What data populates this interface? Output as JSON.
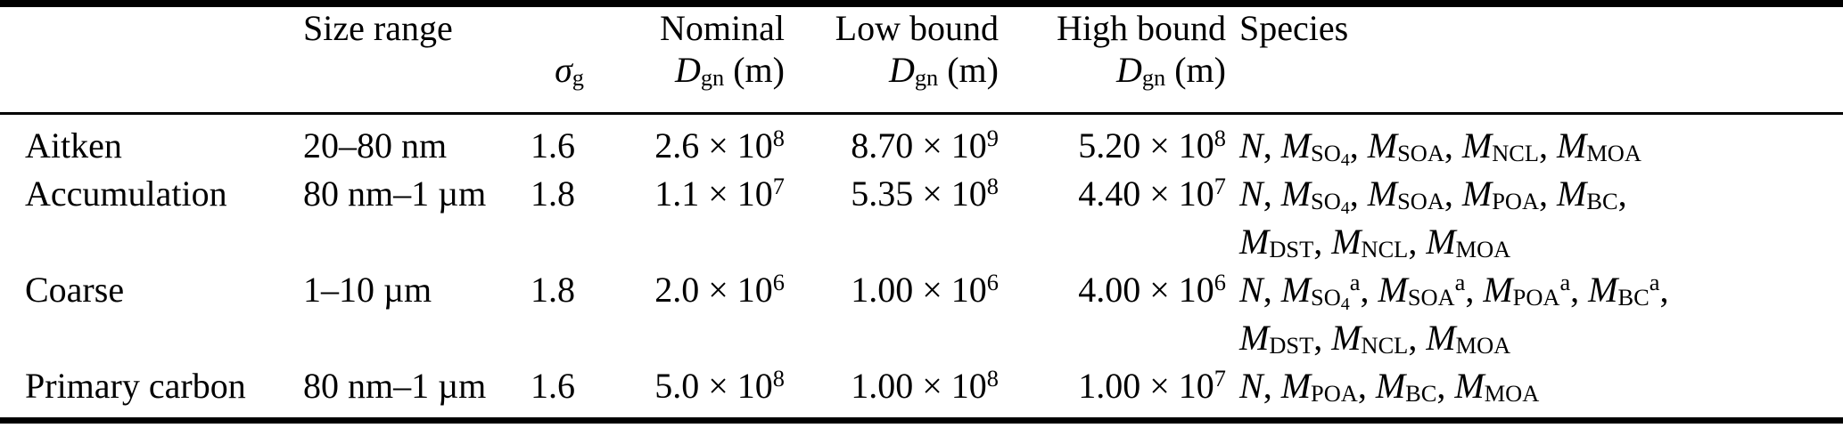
{
  "table": {
    "header": {
      "size_range": "Size range",
      "sigma_g": [
        [
          "i",
          "σ"
        ],
        [
          "sub",
          "g"
        ]
      ],
      "nominal": "Nominal",
      "low_bound": "Low bound",
      "high_bound": "High bound",
      "dgn_m": [
        [
          "i",
          "D"
        ],
        [
          "sub",
          "gn"
        ],
        [
          "n",
          " (m)"
        ]
      ],
      "species": "Species"
    },
    "rows": [
      {
        "mode": "Aitken",
        "size_range": "20–80 nm",
        "sigma_g": "1.6",
        "nominal": [
          [
            "n",
            "2.6 × 10"
          ],
          [
            "sup",
            "8"
          ]
        ],
        "low": [
          [
            "n",
            "8.70 × 10"
          ],
          [
            "sup",
            "9"
          ]
        ],
        "high": [
          [
            "n",
            "5.20 × 10"
          ],
          [
            "sup",
            "8"
          ]
        ],
        "species_line1": [
          [
            "i",
            "N"
          ],
          [
            "n",
            ", "
          ],
          [
            "i",
            "M"
          ],
          [
            "sub",
            "SO"
          ],
          [
            "subsub",
            "4"
          ],
          [
            "n",
            ", "
          ],
          [
            "i",
            "M"
          ],
          [
            "sub",
            "SOA"
          ],
          [
            "n",
            ", "
          ],
          [
            "i",
            "M"
          ],
          [
            "sub",
            "NCL"
          ],
          [
            "n",
            ", "
          ],
          [
            "i",
            "M"
          ],
          [
            "sub",
            "MOA"
          ]
        ],
        "species_line2": null
      },
      {
        "mode": "Accumulation",
        "size_range": "80 nm–1 µm",
        "sigma_g": "1.8",
        "nominal": [
          [
            "n",
            "1.1 × 10"
          ],
          [
            "sup",
            "7"
          ]
        ],
        "low": [
          [
            "n",
            "5.35 × 10"
          ],
          [
            "sup",
            "8"
          ]
        ],
        "high": [
          [
            "n",
            "4.40 × 10"
          ],
          [
            "sup",
            "7"
          ]
        ],
        "species_line1": [
          [
            "i",
            "N"
          ],
          [
            "n",
            ", "
          ],
          [
            "i",
            "M"
          ],
          [
            "sub",
            "SO"
          ],
          [
            "subsub",
            "4"
          ],
          [
            "n",
            ", "
          ],
          [
            "i",
            "M"
          ],
          [
            "sub",
            "SOA"
          ],
          [
            "n",
            ", "
          ],
          [
            "i",
            "M"
          ],
          [
            "sub",
            "POA"
          ],
          [
            "n",
            ", "
          ],
          [
            "i",
            "M"
          ],
          [
            "sub",
            "BC"
          ],
          [
            "n",
            ","
          ]
        ],
        "species_line2": [
          [
            "i",
            "M"
          ],
          [
            "sub",
            "DST"
          ],
          [
            "n",
            ", "
          ],
          [
            "i",
            "M"
          ],
          [
            "sub",
            "NCL"
          ],
          [
            "n",
            ", "
          ],
          [
            "i",
            "M"
          ],
          [
            "sub",
            "MOA"
          ]
        ]
      },
      {
        "mode": "Coarse",
        "size_range": "1–10 µm",
        "sigma_g": "1.8",
        "nominal": [
          [
            "n",
            "2.0 × 10"
          ],
          [
            "sup",
            "6"
          ]
        ],
        "low": [
          [
            "n",
            "1.00 × 10"
          ],
          [
            "sup",
            "6"
          ]
        ],
        "high": [
          [
            "n",
            "4.00 × 10"
          ],
          [
            "sup",
            "6"
          ]
        ],
        "species_line1": [
          [
            "i",
            "N"
          ],
          [
            "n",
            ", "
          ],
          [
            "i",
            "M"
          ],
          [
            "sub",
            "SO"
          ],
          [
            "subsub",
            "4"
          ],
          [
            "sup",
            "a"
          ],
          [
            "n",
            ", "
          ],
          [
            "i",
            "M"
          ],
          [
            "sub",
            "SOA"
          ],
          [
            "sup",
            "a"
          ],
          [
            "n",
            ", "
          ],
          [
            "i",
            "M"
          ],
          [
            "sub",
            "POA"
          ],
          [
            "sup",
            "a"
          ],
          [
            "n",
            ", "
          ],
          [
            "i",
            "M"
          ],
          [
            "sub",
            "BC"
          ],
          [
            "sup",
            "a"
          ],
          [
            "n",
            ","
          ]
        ],
        "species_line2": [
          [
            "i",
            "M"
          ],
          [
            "sub",
            "DST"
          ],
          [
            "n",
            ", "
          ],
          [
            "i",
            "M"
          ],
          [
            "sub",
            "NCL"
          ],
          [
            "n",
            ", "
          ],
          [
            "i",
            "M"
          ],
          [
            "sub",
            "MOA"
          ]
        ]
      },
      {
        "mode": "Primary carbon",
        "size_range": "80 nm–1 µm",
        "sigma_g": "1.6",
        "nominal": [
          [
            "n",
            "5.0 × 10"
          ],
          [
            "sup",
            "8"
          ]
        ],
        "low": [
          [
            "n",
            "1.00 × 10"
          ],
          [
            "sup",
            "8"
          ]
        ],
        "high": [
          [
            "n",
            "1.00 × 10"
          ],
          [
            "sup",
            "7"
          ]
        ],
        "species_line1": [
          [
            "i",
            "N"
          ],
          [
            "n",
            ", "
          ],
          [
            "i",
            "M"
          ],
          [
            "sub",
            "POA"
          ],
          [
            "n",
            ", "
          ],
          [
            "i",
            "M"
          ],
          [
            "sub",
            "BC"
          ],
          [
            "n",
            ", "
          ],
          [
            "i",
            "M"
          ],
          [
            "sub",
            "MOA"
          ]
        ],
        "species_line2": null
      }
    ]
  }
}
